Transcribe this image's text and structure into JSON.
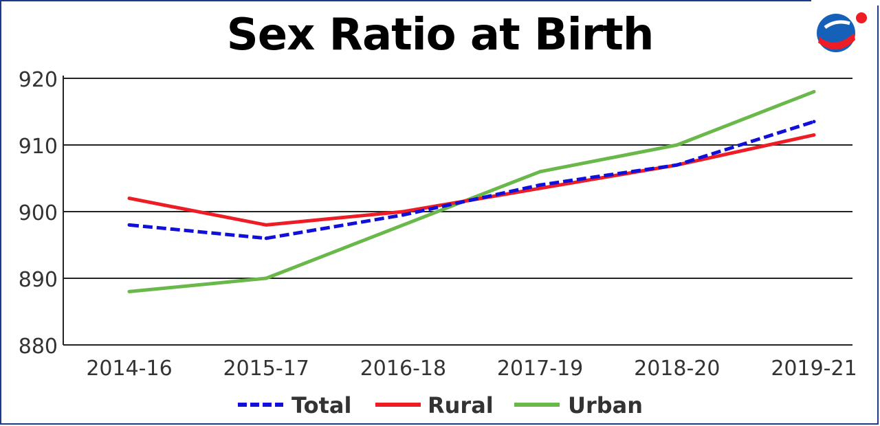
{
  "chart_data": {
    "type": "line",
    "title": "Sex Ratio at Birth",
    "categories": [
      "2014-16",
      "2015-17",
      "2016-18",
      "2017-19",
      "2018-20",
      "2019-21"
    ],
    "series": [
      {
        "name": "Total",
        "values": [
          898,
          896,
          899.5,
          904,
          907,
          913.5
        ],
        "color": "#1010d8",
        "style": "dashed"
      },
      {
        "name": "Rural",
        "values": [
          902,
          898,
          900,
          903.5,
          907,
          911.5
        ],
        "color": "#ee1c24",
        "style": "solid"
      },
      {
        "name": "Urban",
        "values": [
          888,
          890,
          898,
          906,
          910,
          918
        ],
        "color": "#6ab84a",
        "style": "solid"
      }
    ],
    "ylim": [
      880,
      920
    ],
    "yticks": [
      920,
      910,
      900,
      890,
      880
    ],
    "grid": true,
    "legend": "bottom"
  }
}
